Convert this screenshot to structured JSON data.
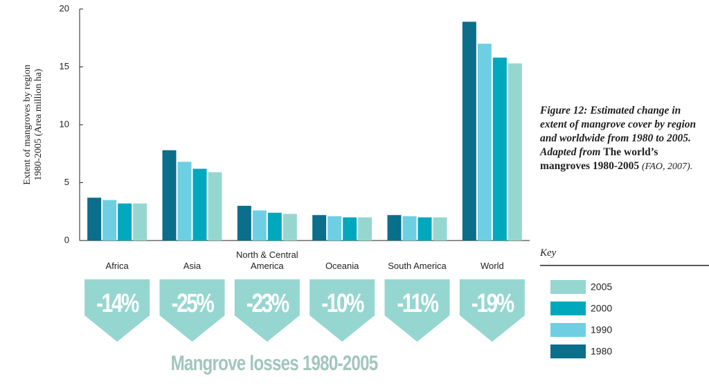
{
  "chart_data": {
    "type": "bar",
    "y_label": [
      "Extent of mangroves by region",
      "1980-2005 (Area million ha)"
    ],
    "categories": [
      "Africa",
      "Asia",
      "North & Central America",
      "Oceania",
      "South America",
      "World"
    ],
    "series": [
      {
        "name": "1980",
        "color": "#0b6e8a",
        "values": [
          3.7,
          7.8,
          3.0,
          2.2,
          2.2,
          18.9
        ]
      },
      {
        "name": "1990",
        "color": "#6fcfe2",
        "values": [
          3.5,
          6.8,
          2.6,
          2.1,
          2.1,
          17.0
        ]
      },
      {
        "name": "2000",
        "color": "#00a8bd",
        "values": [
          3.2,
          6.2,
          2.4,
          2.0,
          2.0,
          15.8
        ]
      },
      {
        "name": "2005",
        "color": "#96d6d0",
        "values": [
          3.2,
          5.9,
          2.3,
          2.0,
          2.0,
          15.3
        ]
      }
    ],
    "ylim": [
      0,
      20
    ],
    "yticks": [
      0,
      5,
      10,
      15,
      20
    ],
    "grid": false,
    "legend_title": "Key",
    "losses": {
      "title": "Mangrove losses 1980-2005",
      "color": "#96d6d0",
      "values": [
        -14,
        -25,
        -23,
        -10,
        -11,
        -19
      ],
      "value_labels": [
        "-14%",
        "-25%",
        "-23%",
        "-10%",
        "-11%",
        "-19%"
      ]
    },
    "caption": [
      "Figure 12: Estimated change in extent of mangrove cover by region and worldwide from 1980 to 2005.",
      "Adapted from",
      "The world’s mangroves 1980-2005",
      "(FAO, 2007)."
    ]
  }
}
